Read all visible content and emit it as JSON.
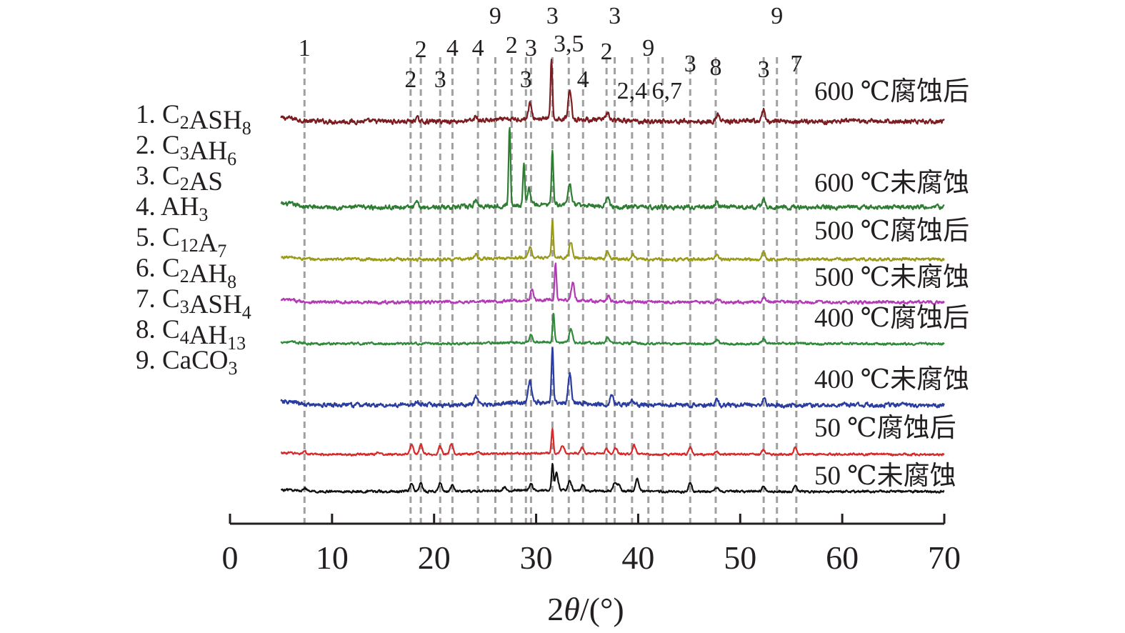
{
  "chart_data": {
    "type": "line",
    "chart_subtype": "stacked XRD patterns with offset",
    "xlabel": "2θ/(°)",
    "xlim": [
      0,
      70
    ],
    "xticks": [
      0,
      10,
      20,
      30,
      40,
      50,
      60,
      70
    ],
    "x_range_measured": [
      5,
      70
    ],
    "y_axis": "none (intensity, offset per series)",
    "grid": false,
    "legend_placement": "left",
    "legend": [
      {
        "num": "1.",
        "parts": [
          [
            "C",
            ""
          ],
          [
            "2",
            "sub"
          ],
          [
            "ASH",
            ""
          ],
          [
            "8",
            "sub"
          ]
        ]
      },
      {
        "num": "2.",
        "parts": [
          [
            "C",
            ""
          ],
          [
            "3",
            "sub"
          ],
          [
            "AH",
            ""
          ],
          [
            "6",
            "sub"
          ]
        ]
      },
      {
        "num": "3.",
        "parts": [
          [
            "C",
            ""
          ],
          [
            "2",
            "sub"
          ],
          [
            "AS",
            ""
          ]
        ]
      },
      {
        "num": "4.",
        "parts": [
          [
            "AH",
            ""
          ],
          [
            "3",
            "sub"
          ]
        ]
      },
      {
        "num": "5.",
        "parts": [
          [
            "C",
            ""
          ],
          [
            "12",
            "sub"
          ],
          [
            "A",
            ""
          ],
          [
            "7",
            "sub"
          ]
        ]
      },
      {
        "num": "6.",
        "parts": [
          [
            "C",
            ""
          ],
          [
            "2",
            "sub"
          ],
          [
            "AH",
            ""
          ],
          [
            "8",
            "sub"
          ]
        ]
      },
      {
        "num": "7.",
        "parts": [
          [
            "C",
            ""
          ],
          [
            "3",
            "sub"
          ],
          [
            "ASH",
            ""
          ],
          [
            "4",
            "sub"
          ]
        ]
      },
      {
        "num": "8.",
        "parts": [
          [
            "C",
            ""
          ],
          [
            "4",
            "sub"
          ],
          [
            "AH",
            ""
          ],
          [
            "13",
            "sub"
          ]
        ]
      },
      {
        "num": "9.",
        "parts": [
          [
            "CaCO",
            ""
          ],
          [
            "3",
            "sub"
          ]
        ]
      }
    ],
    "reference_lines": [
      {
        "x": 7.3,
        "label": "1"
      },
      {
        "x": 17.7,
        "label": "2"
      },
      {
        "x": 18.7,
        "label": "2"
      },
      {
        "x": 20.6,
        "label": "3"
      },
      {
        "x": 21.8,
        "label": "4"
      },
      {
        "x": 24.3,
        "label": "4"
      },
      {
        "x": 26.0,
        "label": "9"
      },
      {
        "x": 27.6,
        "label": "2"
      },
      {
        "x": 29.0,
        "label": "3"
      },
      {
        "x": 29.5,
        "label": "3"
      },
      {
        "x": 31.6,
        "label": "3"
      },
      {
        "x": 33.2,
        "label": "3,5"
      },
      {
        "x": 34.6,
        "label": "4"
      },
      {
        "x": 36.9,
        "label": "2"
      },
      {
        "x": 37.7,
        "label": "3"
      },
      {
        "x": 39.4,
        "label": "2,4"
      },
      {
        "x": 41.0,
        "label": "9"
      },
      {
        "x": 42.4,
        "label": "6,7"
      },
      {
        "x": 45.1,
        "label": "3"
      },
      {
        "x": 47.6,
        "label": "8"
      },
      {
        "x": 52.3,
        "label": "3"
      },
      {
        "x": 53.6,
        "label": "9"
      },
      {
        "x": 55.5,
        "label": "7"
      }
    ],
    "series": [
      {
        "name": "600 ℃腐蚀后",
        "color": "#7b1c20",
        "peaks": [
          [
            29.4,
            0.26
          ],
          [
            31.5,
            1.0
          ],
          [
            33.3,
            0.52
          ],
          [
            37.0,
            0.14
          ],
          [
            47.8,
            0.12
          ],
          [
            52.3,
            0.2
          ],
          [
            18.3,
            0.06
          ],
          [
            24.1,
            0.07
          ]
        ]
      },
      {
        "name": "600 ℃未腐蚀",
        "color": "#2e7d32",
        "peaks": [
          [
            27.4,
            1.45
          ],
          [
            28.8,
            0.75
          ],
          [
            29.3,
            0.3
          ],
          [
            31.6,
            1.0
          ],
          [
            33.3,
            0.42
          ],
          [
            37.0,
            0.2
          ],
          [
            24.1,
            0.12
          ],
          [
            18.3,
            0.08
          ],
          [
            47.7,
            0.1
          ],
          [
            52.3,
            0.14
          ]
        ]
      },
      {
        "name": "500 ℃腐蚀后",
        "color": "#9a9a1a",
        "peaks": [
          [
            29.4,
            0.3
          ],
          [
            31.6,
            1.0
          ],
          [
            33.4,
            0.45
          ],
          [
            37.0,
            0.2
          ],
          [
            39.5,
            0.14
          ],
          [
            47.7,
            0.14
          ],
          [
            52.3,
            0.2
          ],
          [
            24.1,
            0.12
          ]
        ]
      },
      {
        "name": "500 ℃未腐蚀",
        "color": "#b23bb5",
        "peaks": [
          [
            29.6,
            0.28
          ],
          [
            31.9,
            1.0
          ],
          [
            33.6,
            0.5
          ],
          [
            37.1,
            0.14
          ],
          [
            47.8,
            0.09
          ],
          [
            52.3,
            0.14
          ]
        ]
      },
      {
        "name": "400 ℃腐蚀后",
        "color": "#2f8a3a",
        "peaks": [
          [
            29.5,
            0.3
          ],
          [
            31.7,
            1.0
          ],
          [
            33.4,
            0.45
          ],
          [
            37.0,
            0.2
          ],
          [
            47.7,
            0.14
          ],
          [
            52.3,
            0.18
          ],
          [
            39.6,
            0.08
          ]
        ]
      },
      {
        "name": "400 ℃未腐蚀",
        "color": "#2a3d9e",
        "peaks": [
          [
            29.4,
            0.4
          ],
          [
            31.6,
            1.0
          ],
          [
            33.3,
            0.55
          ],
          [
            37.4,
            0.18
          ],
          [
            24.1,
            0.14
          ],
          [
            39.4,
            0.1
          ],
          [
            47.7,
            0.12
          ],
          [
            52.3,
            0.12
          ],
          [
            18.3,
            0.06
          ]
        ]
      },
      {
        "name": "50 ℃腐蚀后",
        "color": "#d52b2b",
        "peaks": [
          [
            17.8,
            0.4
          ],
          [
            18.7,
            0.4
          ],
          [
            20.6,
            0.35
          ],
          [
            21.7,
            0.45
          ],
          [
            31.6,
            1.0
          ],
          [
            32.6,
            0.3
          ],
          [
            34.5,
            0.25
          ],
          [
            36.9,
            0.22
          ],
          [
            37.8,
            0.25
          ],
          [
            39.6,
            0.35
          ],
          [
            45.1,
            0.28
          ],
          [
            52.3,
            0.18
          ],
          [
            55.4,
            0.28
          ],
          [
            47.7,
            0.14
          ],
          [
            24.3,
            0.12
          ],
          [
            7.3,
            0.12
          ],
          [
            14.5,
            0.1
          ]
        ]
      },
      {
        "name": "50 ℃未腐蚀",
        "color": "#111111",
        "peaks": [
          [
            17.8,
            0.3
          ],
          [
            18.7,
            0.3
          ],
          [
            20.6,
            0.32
          ],
          [
            21.8,
            0.22
          ],
          [
            29.5,
            0.22
          ],
          [
            31.6,
            0.9
          ],
          [
            32.0,
            0.6
          ],
          [
            33.3,
            0.35
          ],
          [
            34.6,
            0.2
          ],
          [
            37.7,
            0.3
          ],
          [
            38.1,
            0.25
          ],
          [
            39.9,
            0.45
          ],
          [
            45.1,
            0.32
          ],
          [
            52.3,
            0.18
          ],
          [
            55.4,
            0.25
          ],
          [
            47.7,
            0.14
          ],
          [
            7.3,
            0.12
          ],
          [
            26.9,
            0.14
          ]
        ]
      }
    ]
  }
}
